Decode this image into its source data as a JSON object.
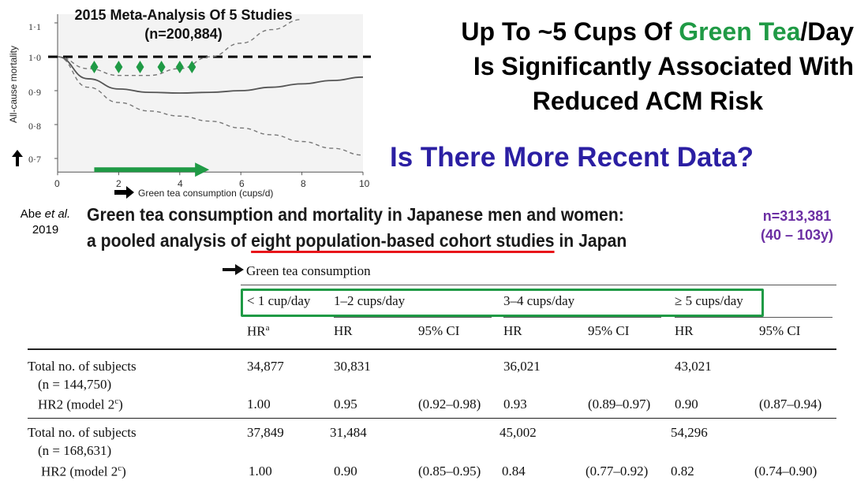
{
  "headline": {
    "line1_part1": "Up To ~5 Cups Of ",
    "line1_highlight": "Green Tea",
    "line1_part2": "/Day",
    "line2": "Is Significantly Associated With",
    "line3": "Reduced ACM Risk",
    "question": "Is There More Recent Data?"
  },
  "colors": {
    "green": "#1f9a45",
    "question_blue": "#2b1fa3",
    "purple": "#6b2ea3",
    "underline_red": "#e8151a"
  },
  "chart_data": {
    "type": "line",
    "title_line1": "2015 Meta-Analysis Of 5 Studies",
    "title_line2": "(n=200,884)",
    "xlabel": "Green tea consumption (cups/d)",
    "ylabel": "All-cause mortality",
    "xlim": [
      0,
      10
    ],
    "ylim": [
      0.66,
      1.1
    ],
    "x_ticks": [
      "0",
      "2",
      "4",
      "6",
      "8",
      "10"
    ],
    "y_ticks": [
      "1·1",
      "1·0",
      "0·9",
      "0·8",
      "0·7"
    ],
    "reference_y": 1.0,
    "series": [
      {
        "style": "solid",
        "x": [
          0,
          1,
          2,
          3,
          4,
          5,
          6,
          7,
          8,
          9,
          10
        ],
        "y": [
          1.0,
          0.935,
          0.905,
          0.895,
          0.893,
          0.895,
          0.9,
          0.91,
          0.92,
          0.93,
          0.94
        ]
      },
      {
        "style": "dashed-upper",
        "x": [
          0,
          1,
          2,
          3,
          4,
          5,
          6,
          7,
          8
        ],
        "y": [
          1.0,
          0.965,
          0.945,
          0.945,
          0.965,
          1.0,
          1.04,
          1.08,
          1.11
        ]
      },
      {
        "style": "dashed-lower",
        "x": [
          0,
          1,
          2,
          3,
          4,
          5,
          6,
          7,
          8,
          9,
          10
        ],
        "y": [
          1.0,
          0.91,
          0.865,
          0.84,
          0.825,
          0.81,
          0.79,
          0.77,
          0.75,
          0.73,
          0.71
        ]
      }
    ],
    "marker_x": [
      1.2,
      2.0,
      2.7,
      3.4,
      4.0,
      4.4
    ]
  },
  "citation": {
    "author_prefix": "Abe ",
    "author_etal": "et al.",
    "year": "2019",
    "title_line1": "Green tea consumption and mortality in Japanese men and women:",
    "title_line2_pre": "a pooled analysis of ",
    "title_line2_underlined": "eight population-based cohort studies",
    "title_line2_post": " in Japan",
    "n_total": "n=313,381",
    "age_range": "(40 – 103y)"
  },
  "table": {
    "caption": "Green tea consumption",
    "groups": [
      "< 1 cup/day",
      "1–2 cups/day",
      "3–4 cups/day",
      "≥ 5 cups/day"
    ],
    "subheaders": [
      "HR",
      "a",
      "HR",
      "95% CI",
      "HR",
      "95% CI",
      "HR",
      "95% CI"
    ],
    "blocks": [
      {
        "label": "Total no. of subjects",
        "n": "(n = 144,750)",
        "counts": [
          "34,877",
          "30,831",
          "36,021",
          "43,021"
        ],
        "hr_label": "HR2 (model 2",
        "hr_sup": "c",
        "hr_close": ")",
        "hr": [
          "1.00",
          "0.95",
          "(0.92–0.98)",
          "0.93",
          "(0.89–0.97)",
          "0.90",
          "(0.87–0.94)"
        ]
      },
      {
        "label": "Total no. of subjects",
        "n": "(n = 168,631)",
        "counts": [
          "37,849",
          "31,484",
          "45,002",
          "54,296"
        ],
        "hr_label": "HR2 (model 2",
        "hr_sup": "c",
        "hr_close": ")",
        "hr": [
          "1.00",
          "0.90",
          "(0.85–0.95)",
          "0.84",
          "(0.77–0.92)",
          "0.82",
          "(0.74–0.90)"
        ]
      }
    ]
  }
}
